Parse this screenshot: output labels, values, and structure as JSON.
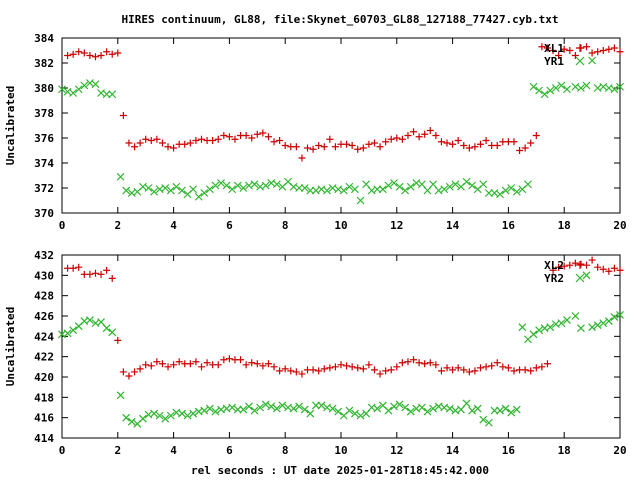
{
  "title": "HIRES continuum, GL88, file:Skynet_60703_GL88_127188_77427.cyb.txt",
  "xlabel": "rel seconds : UT date 2025-01-28T18:45:42.000",
  "colors": {
    "red": "#cc0000",
    "green": "#2ab52a"
  },
  "chart_data": [
    {
      "type": "scatter",
      "ylabel": "Uncalibrated",
      "xlim": [
        0,
        20
      ],
      "ylim": [
        370,
        384
      ],
      "xticks": [
        0,
        2,
        4,
        6,
        8,
        10,
        12,
        14,
        16,
        18,
        20
      ],
      "yticks": [
        370,
        372,
        374,
        376,
        378,
        380,
        382,
        384
      ],
      "legend_position": "top-right",
      "series": [
        {
          "name": "XL1",
          "marker": "plus",
          "color": "#cc0000",
          "x": [
            0.2,
            0.4,
            0.6,
            0.8,
            1.0,
            1.2,
            1.4,
            1.6,
            1.8,
            2.0,
            2.2,
            2.4,
            2.6,
            2.8,
            3.0,
            3.2,
            3.4,
            3.6,
            3.8,
            4.0,
            4.2,
            4.4,
            4.6,
            4.8,
            5.0,
            5.2,
            5.4,
            5.6,
            5.8,
            6.0,
            6.2,
            6.4,
            6.6,
            6.8,
            7.0,
            7.2,
            7.4,
            7.6,
            7.8,
            8.0,
            8.2,
            8.4,
            8.6,
            8.8,
            9.0,
            9.2,
            9.4,
            9.6,
            9.8,
            10.0,
            10.2,
            10.4,
            10.6,
            10.8,
            11.0,
            11.2,
            11.4,
            11.6,
            11.8,
            12.0,
            12.2,
            12.4,
            12.6,
            12.8,
            13.0,
            13.2,
            13.4,
            13.6,
            13.8,
            14.0,
            14.2,
            14.4,
            14.6,
            14.8,
            15.0,
            15.2,
            15.4,
            15.6,
            15.8,
            16.0,
            16.2,
            16.4,
            16.6,
            16.8,
            17.0,
            17.2,
            17.4,
            17.6,
            17.8,
            18.0,
            18.2,
            18.4,
            18.6,
            18.8,
            19.0,
            19.2,
            19.4,
            19.6,
            19.8,
            20.0
          ],
          "y": [
            382.6,
            382.7,
            382.9,
            382.8,
            382.6,
            382.5,
            382.6,
            382.9,
            382.7,
            382.8,
            377.8,
            375.6,
            375.3,
            375.6,
            375.9,
            375.8,
            375.9,
            375.6,
            375.3,
            375.2,
            375.5,
            375.5,
            375.6,
            375.8,
            375.9,
            375.8,
            375.8,
            375.9,
            376.2,
            376.1,
            375.9,
            376.2,
            376.2,
            376.0,
            376.3,
            376.4,
            376.1,
            375.7,
            375.8,
            375.4,
            375.3,
            375.3,
            374.4,
            375.2,
            375.1,
            375.4,
            375.3,
            375.9,
            375.3,
            375.5,
            375.5,
            375.4,
            375.1,
            375.2,
            375.5,
            375.6,
            375.3,
            375.7,
            375.9,
            376.0,
            375.9,
            376.2,
            376.5,
            376.1,
            376.3,
            376.6,
            376.2,
            375.7,
            375.6,
            375.5,
            375.8,
            375.4,
            375.2,
            375.3,
            375.5,
            375.8,
            375.4,
            375.4,
            375.7,
            375.7,
            375.7,
            375.0,
            375.2,
            375.6,
            376.2,
            383.3,
            383.2,
            383.0,
            382.6,
            383.1,
            383.0,
            382.6,
            383.2,
            383.3,
            382.8,
            382.9,
            383.0,
            383.1,
            383.2,
            382.9
          ],
          "x_seg1": [
            0.2,
            0.4,
            0.6,
            0.8,
            1.0,
            1.2,
            1.4,
            1.6,
            1.8,
            2.0
          ]
        },
        {
          "name": "YR1",
          "marker": "cross",
          "color": "#2ab52a",
          "x": [
            0.0,
            0.2,
            0.4,
            0.6,
            0.8,
            1.0,
            1.2,
            1.4,
            1.6,
            1.8,
            2.1,
            2.3,
            2.5,
            2.7,
            2.9,
            3.1,
            3.3,
            3.5,
            3.7,
            3.9,
            4.1,
            4.3,
            4.5,
            4.7,
            4.9,
            5.1,
            5.3,
            5.5,
            5.7,
            5.9,
            6.1,
            6.3,
            6.5,
            6.7,
            6.9,
            7.1,
            7.3,
            7.5,
            7.7,
            7.9,
            8.1,
            8.3,
            8.5,
            8.7,
            8.9,
            9.1,
            9.3,
            9.5,
            9.7,
            9.9,
            10.1,
            10.3,
            10.5,
            10.7,
            10.9,
            11.1,
            11.3,
            11.5,
            11.7,
            11.9,
            12.1,
            12.3,
            12.5,
            12.7,
            12.9,
            13.1,
            13.3,
            13.5,
            13.7,
            13.9,
            14.1,
            14.3,
            14.5,
            14.7,
            14.9,
            15.1,
            15.3,
            15.5,
            15.7,
            15.9,
            16.1,
            16.3,
            16.5,
            16.7,
            16.9,
            17.1,
            17.3,
            17.5,
            17.7,
            17.9,
            18.1,
            18.4,
            18.6,
            18.8,
            19.0,
            19.2,
            19.4,
            19.6,
            19.8,
            20.0
          ],
          "y": [
            379.9,
            379.7,
            379.6,
            379.9,
            380.2,
            380.4,
            380.3,
            379.6,
            379.5,
            379.5,
            372.9,
            371.8,
            371.6,
            371.7,
            372.1,
            372.0,
            371.7,
            371.9,
            372.0,
            371.8,
            372.1,
            371.8,
            371.5,
            371.9,
            371.3,
            371.6,
            371.9,
            372.2,
            372.4,
            372.2,
            371.9,
            372.2,
            372.0,
            372.2,
            372.3,
            372.1,
            372.2,
            372.4,
            372.3,
            372.1,
            372.5,
            372.1,
            372.0,
            372.0,
            371.8,
            371.8,
            371.9,
            371.8,
            372.0,
            371.9,
            371.8,
            372.1,
            371.9,
            371.0,
            372.3,
            371.8,
            371.9,
            371.9,
            372.2,
            372.4,
            372.1,
            371.8,
            372.1,
            372.4,
            372.3,
            371.8,
            372.3,
            371.8,
            371.9,
            372.1,
            372.3,
            372.1,
            372.5,
            372.2,
            371.9,
            372.3,
            371.6,
            371.6,
            371.5,
            371.8,
            372.0,
            371.7,
            371.9,
            372.3,
            380.1,
            379.8,
            379.5,
            379.8,
            380.0,
            380.2,
            379.9,
            380.1,
            380.0,
            380.2,
            382.2,
            380.0,
            380.1,
            380.0,
            379.9,
            380.1
          ]
        }
      ]
    },
    {
      "type": "scatter",
      "ylabel": "Uncalibrated",
      "xlim": [
        0,
        20
      ],
      "ylim": [
        414,
        432
      ],
      "xticks": [
        0,
        2,
        4,
        6,
        8,
        10,
        12,
        14,
        16,
        18,
        20
      ],
      "yticks": [
        414,
        416,
        418,
        420,
        422,
        424,
        426,
        428,
        430,
        432
      ],
      "legend_position": "top-right",
      "series": [
        {
          "name": "XL2",
          "marker": "plus",
          "color": "#cc0000",
          "x": [
            0.2,
            0.4,
            0.6,
            0.8,
            1.0,
            1.2,
            1.4,
            1.6,
            1.8,
            2.0,
            2.2,
            2.4,
            2.6,
            2.8,
            3.0,
            3.2,
            3.4,
            3.6,
            3.8,
            4.0,
            4.2,
            4.4,
            4.6,
            4.8,
            5.0,
            5.2,
            5.4,
            5.6,
            5.8,
            6.0,
            6.2,
            6.4,
            6.6,
            6.8,
            7.0,
            7.2,
            7.4,
            7.6,
            7.8,
            8.0,
            8.2,
            8.4,
            8.6,
            8.8,
            9.0,
            9.2,
            9.4,
            9.6,
            9.8,
            10.0,
            10.2,
            10.4,
            10.6,
            10.8,
            11.0,
            11.2,
            11.4,
            11.6,
            11.8,
            12.0,
            12.2,
            12.4,
            12.6,
            12.8,
            13.0,
            13.2,
            13.4,
            13.6,
            13.8,
            14.0,
            14.2,
            14.4,
            14.6,
            14.8,
            15.0,
            15.2,
            15.4,
            15.6,
            15.8,
            16.0,
            16.2,
            16.4,
            16.6,
            16.8,
            17.0,
            17.2,
            17.4,
            17.6,
            17.8,
            18.0,
            18.2,
            18.4,
            18.6,
            18.8,
            19.0,
            19.2,
            19.4,
            19.6,
            19.8,
            20.0
          ],
          "y": [
            430.7,
            430.7,
            430.8,
            430.1,
            430.1,
            430.2,
            430.1,
            430.5,
            429.7,
            423.6,
            420.5,
            420.1,
            420.5,
            420.8,
            421.2,
            421.1,
            421.5,
            421.3,
            421.0,
            421.2,
            421.5,
            421.3,
            421.3,
            421.5,
            421.0,
            421.4,
            421.2,
            421.2,
            421.7,
            421.8,
            421.7,
            421.7,
            421.2,
            421.4,
            421.3,
            421.1,
            421.3,
            421.0,
            420.6,
            420.8,
            420.6,
            420.5,
            420.3,
            420.7,
            420.7,
            420.6,
            420.8,
            420.9,
            421.0,
            421.2,
            421.1,
            421.0,
            420.9,
            420.8,
            421.2,
            420.7,
            420.3,
            420.6,
            420.7,
            421.0,
            421.4,
            421.5,
            421.7,
            421.4,
            421.3,
            421.4,
            421.2,
            420.6,
            420.9,
            420.7,
            420.9,
            420.7,
            420.5,
            420.6,
            420.9,
            421.0,
            421.1,
            421.4,
            421.0,
            420.9,
            420.6,
            420.7,
            420.7,
            420.6,
            420.9,
            421.0,
            421.3,
            430.5,
            430.8,
            430.9,
            431.0,
            431.2,
            431.1,
            431.0,
            431.5,
            430.8,
            430.6,
            430.4,
            430.7,
            430.5
          ]
        },
        {
          "name": "YR2",
          "marker": "cross",
          "color": "#2ab52a",
          "x": [
            0.0,
            0.2,
            0.4,
            0.6,
            0.8,
            1.0,
            1.2,
            1.4,
            1.6,
            1.8,
            2.1,
            2.3,
            2.5,
            2.7,
            2.9,
            3.1,
            3.3,
            3.5,
            3.7,
            3.9,
            4.1,
            4.3,
            4.5,
            4.7,
            4.9,
            5.1,
            5.3,
            5.5,
            5.7,
            5.9,
            6.1,
            6.3,
            6.5,
            6.7,
            6.9,
            7.1,
            7.3,
            7.5,
            7.7,
            7.9,
            8.1,
            8.3,
            8.5,
            8.7,
            8.9,
            9.1,
            9.3,
            9.5,
            9.7,
            9.9,
            10.1,
            10.3,
            10.5,
            10.7,
            10.9,
            11.1,
            11.3,
            11.5,
            11.7,
            11.9,
            12.1,
            12.3,
            12.5,
            12.7,
            12.9,
            13.1,
            13.3,
            13.5,
            13.7,
            13.9,
            14.1,
            14.3,
            14.5,
            14.7,
            14.9,
            15.1,
            15.3,
            15.5,
            15.7,
            15.9,
            16.1,
            16.3,
            16.5,
            16.7,
            16.9,
            17.1,
            17.3,
            17.5,
            17.7,
            17.9,
            18.1,
            18.4,
            18.6,
            18.8,
            19.0,
            19.2,
            19.4,
            19.6,
            19.8,
            20.0
          ],
          "y": [
            424.2,
            424.3,
            424.6,
            425.0,
            425.5,
            425.6,
            425.3,
            425.4,
            424.8,
            424.4,
            418.2,
            416.0,
            415.6,
            415.4,
            415.9,
            416.3,
            416.4,
            416.2,
            415.9,
            416.2,
            416.5,
            416.4,
            416.2,
            416.4,
            416.6,
            416.7,
            416.9,
            416.6,
            416.8,
            416.9,
            417.0,
            416.8,
            416.8,
            417.1,
            416.7,
            417.0,
            417.3,
            417.1,
            416.9,
            417.2,
            417.0,
            416.9,
            417.1,
            416.8,
            416.4,
            417.2,
            417.2,
            417.0,
            416.9,
            416.6,
            416.2,
            416.7,
            416.4,
            416.2,
            416.4,
            417.0,
            416.9,
            417.2,
            416.7,
            417.1,
            417.3,
            417.0,
            416.6,
            416.9,
            417.0,
            416.6,
            416.9,
            417.1,
            417.0,
            416.9,
            416.7,
            416.8,
            417.4,
            416.7,
            416.9,
            415.8,
            415.5,
            416.7,
            416.7,
            416.9,
            416.5,
            416.8,
            424.9,
            423.7,
            424.2,
            424.6,
            424.8,
            424.9,
            425.2,
            425.3,
            425.6,
            426.0,
            424.8,
            430.0,
            424.9,
            425.1,
            425.3,
            425.5,
            425.9,
            426.1
          ]
        }
      ]
    }
  ]
}
